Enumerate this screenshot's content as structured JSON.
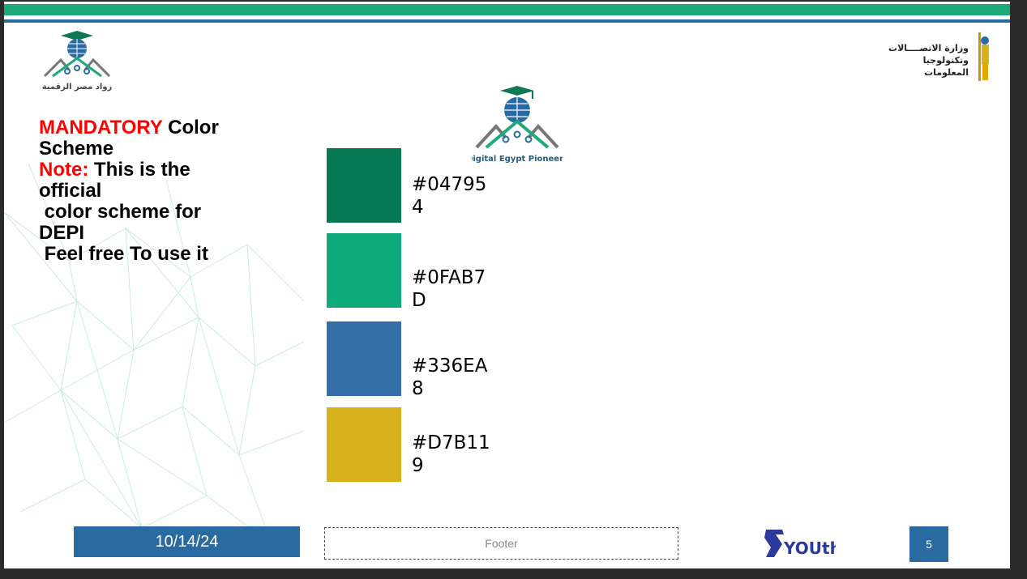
{
  "logos": {
    "left_logo_text": "رواد مصر الرقمية",
    "center_logo_text": "Digital Egypt Pioneers",
    "right_logo_line1": "وزارة الاتصــــالات",
    "right_logo_line2": "وتكنولوجيا المعلومات",
    "youth_logo_text": "YOUth"
  },
  "heading": {
    "mandatory": "MANDATORY",
    "line1_rest": " Color",
    "line2": "Scheme",
    "note_label": "Note:",
    "note_rest": " This is the",
    "line4": "official",
    "line5": " color scheme for",
    "line6": "DEPI",
    "line7": " Feel free To use it"
  },
  "swatches": [
    {
      "color": "#047954",
      "line1": "#04795",
      "line2": "4"
    },
    {
      "color": "#0FAB7D",
      "line1": "#0FAB7",
      "line2": "D"
    },
    {
      "color": "#336EA8",
      "line1": "#336EA",
      "line2": "8"
    },
    {
      "color": "#D7B119",
      "line1": "#D7B11",
      "line2": "9"
    }
  ],
  "footer": {
    "date": "10/14/24",
    "footer_text": "Footer",
    "page_number": "5"
  }
}
